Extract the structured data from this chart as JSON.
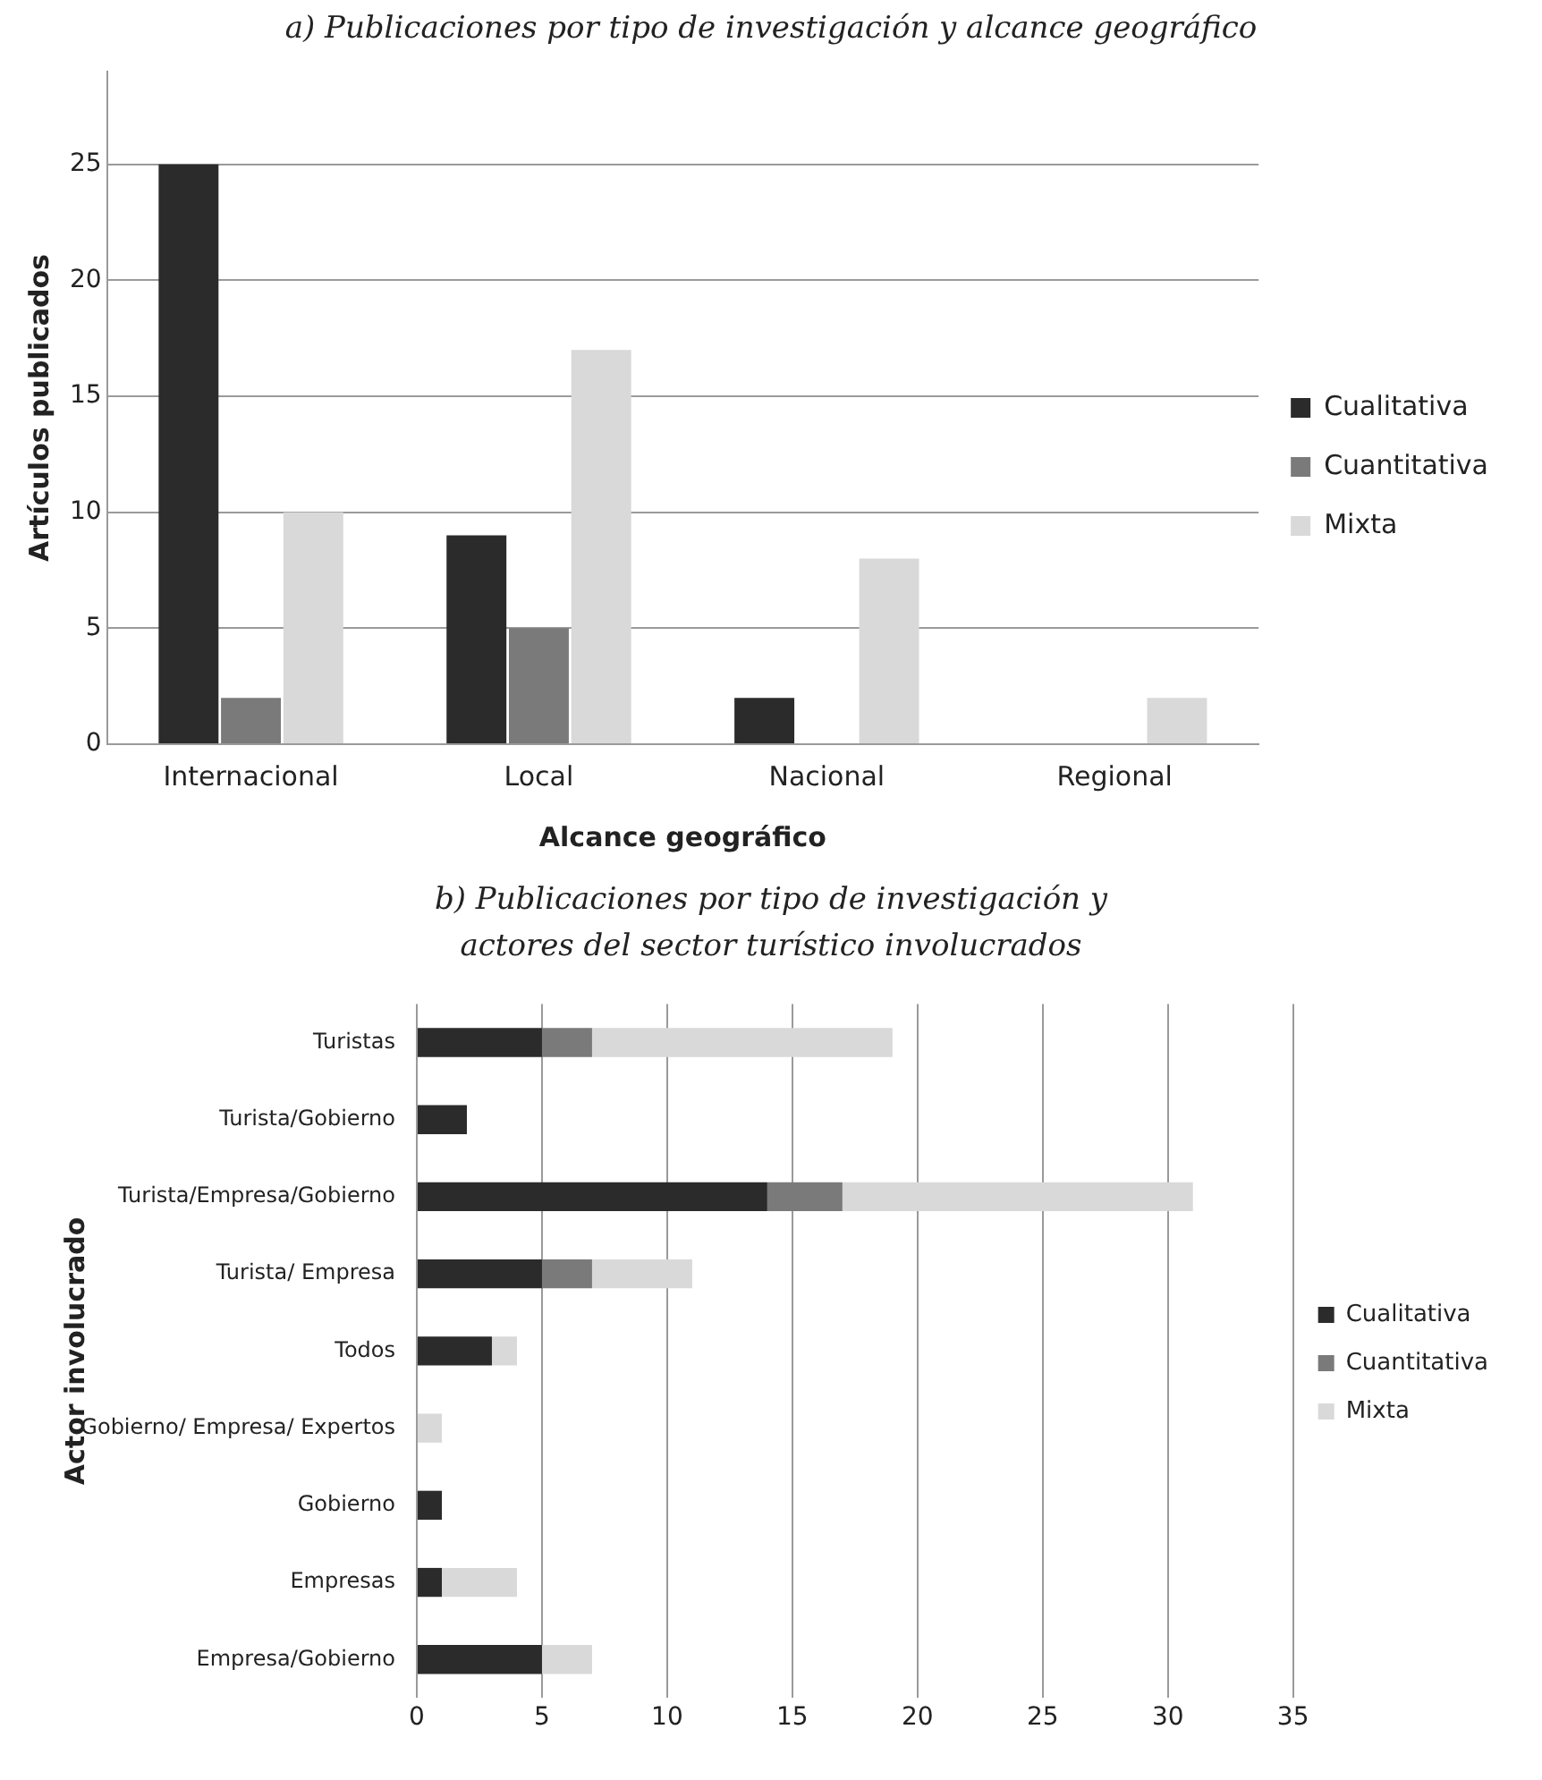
{
  "chart_data": [
    {
      "type": "bar",
      "title": "a) Publicaciones por tipo de investigación y alcance geográfico",
      "xlabel": "Alcance geográfico",
      "ylabel": "Artículos publicados",
      "categories": [
        "Internacional",
        "Local",
        "Nacional",
        "Regional"
      ],
      "series": [
        {
          "name": "Cualitativa",
          "color": "#2b2b2b",
          "values": [
            25,
            9,
            2,
            0
          ]
        },
        {
          "name": "Cuantitativa",
          "color": "#7a7a7a",
          "values": [
            2,
            5,
            0,
            0
          ]
        },
        {
          "name": "Mixta",
          "color": "#d9d9d9",
          "values": [
            10,
            17,
            8,
            2
          ]
        }
      ],
      "ylim": [
        0,
        29
      ],
      "yticks": [
        0,
        5,
        10,
        15,
        20,
        25
      ],
      "grid": "y",
      "legend": "right"
    },
    {
      "type": "bar",
      "title": "b) Publicaciones por tipo de investigación y actores del sector turístico involucrados",
      "ylabel": "Actor involucrado",
      "orientation": "horizontal",
      "stacked": true,
      "categories": [
        "Turistas",
        "Turista/Gobierno",
        "Turista/Empresa/Gobierno",
        "Turista/ Empresa",
        "Todos",
        "Gobierno/ Empresa/ Expertos",
        "Gobierno",
        "Empresas",
        "Empresa/Gobierno"
      ],
      "series": [
        {
          "name": "Cualitativa",
          "color": "#2b2b2b",
          "values": [
            5,
            2,
            14,
            5,
            3,
            0,
            1,
            1,
            5
          ]
        },
        {
          "name": "Cuantitativa",
          "color": "#7a7a7a",
          "values": [
            2,
            0,
            3,
            2,
            0,
            0,
            0,
            0,
            0
          ]
        },
        {
          "name": "Mixta",
          "color": "#d9d9d9",
          "values": [
            12,
            0,
            14,
            4,
            1,
            1,
            0,
            3,
            2
          ]
        }
      ],
      "xlim": [
        0,
        35
      ],
      "xticks": [
        0,
        5,
        10,
        15,
        20,
        25,
        30,
        35
      ],
      "grid": "x",
      "legend": "right"
    }
  ]
}
